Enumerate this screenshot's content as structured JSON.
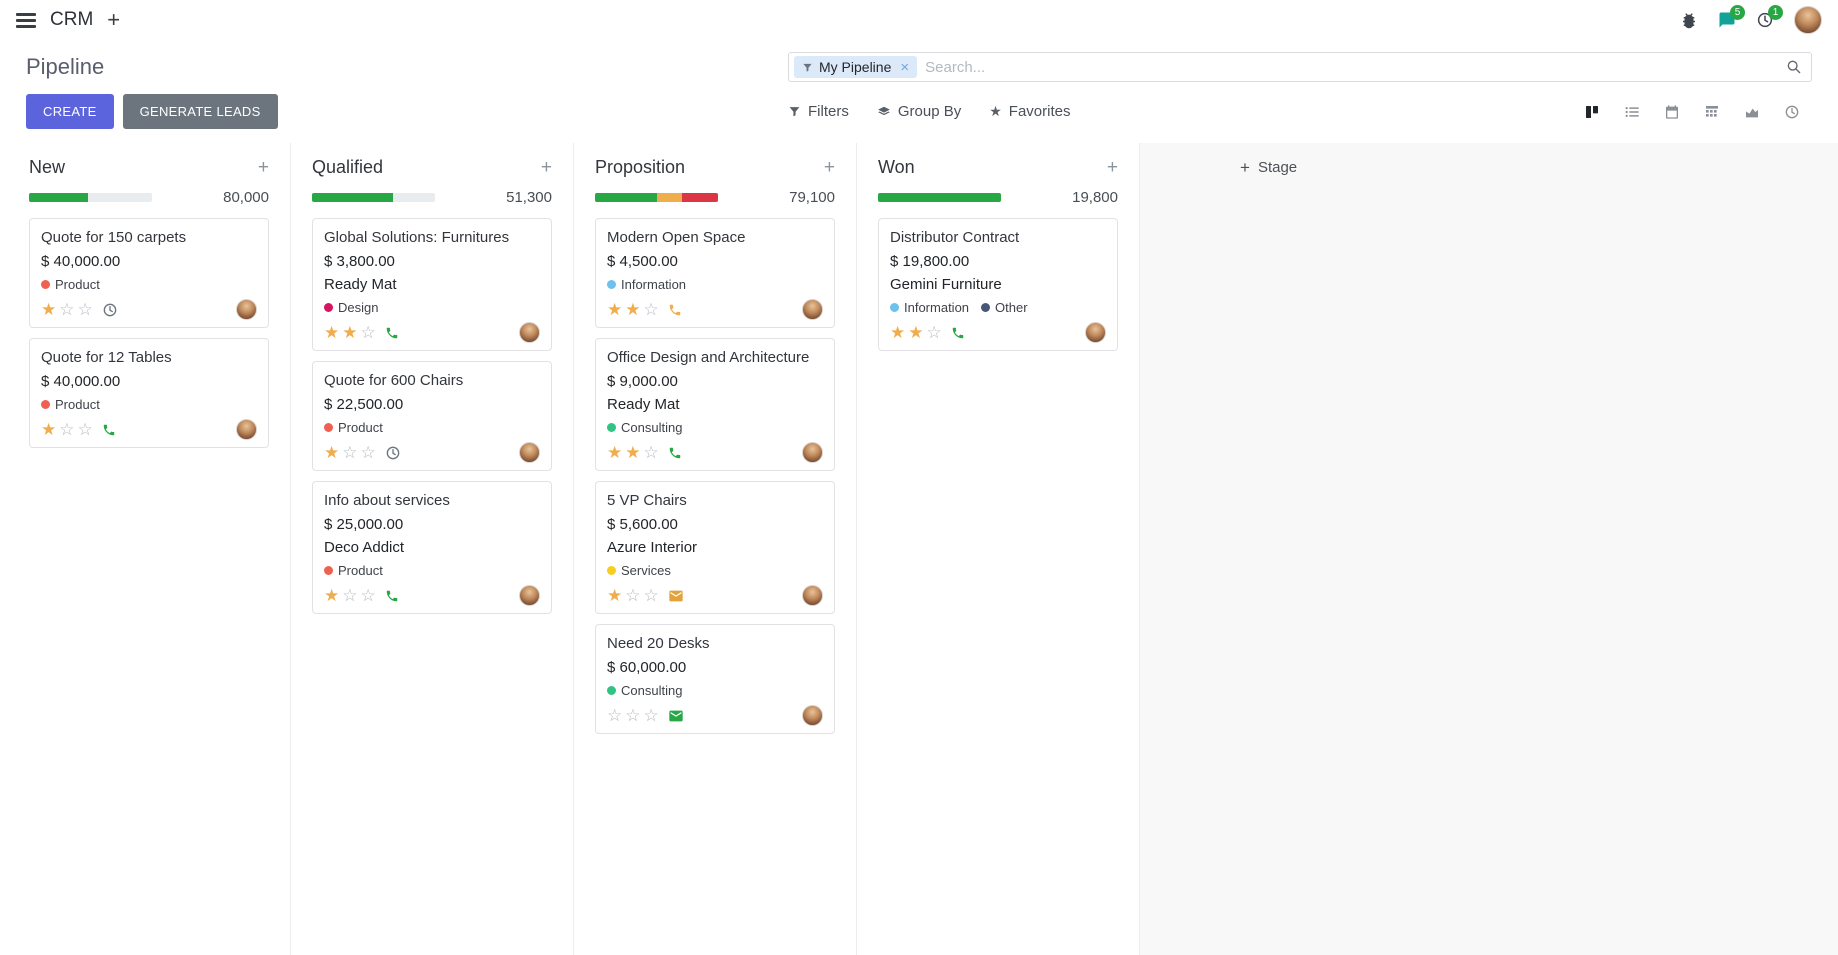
{
  "colors": {
    "primary": "#5c64dd",
    "secondary": "#6c757d",
    "success": "#28a745",
    "warning": "#f0ad4e",
    "danger": "#dc3545"
  },
  "topbar": {
    "app_name": "CRM",
    "messages_badge": "5",
    "activities_badge": "1"
  },
  "control_panel": {
    "title": "Pipeline",
    "create_label": "CREATE",
    "generate_leads_label": "GENERATE LEADS",
    "filters_label": "Filters",
    "group_by_label": "Group By",
    "favorites_label": "Favorites",
    "search": {
      "facet_label": "My Pipeline",
      "placeholder": "Search..."
    }
  },
  "board": {
    "add_stage_label": "Stage",
    "columns": [
      {
        "name": "New",
        "total": "80,000",
        "progress": [
          {
            "color": "#28a745",
            "width": "48%"
          }
        ],
        "cards": [
          {
            "title": "Quote for 150 carpets",
            "amount": "$ 40,000.00",
            "tags": [
              {
                "label": "Product",
                "color": "#f06050"
              }
            ],
            "priority": 1,
            "activity": {
              "icon": "clock-icon",
              "color": "#6c757d"
            }
          },
          {
            "title": "Quote for 12 Tables",
            "amount": "$ 40,000.00",
            "tags": [
              {
                "label": "Product",
                "color": "#f06050"
              }
            ],
            "priority": 1,
            "activity": {
              "icon": "phone-icon",
              "color": "#28a745"
            }
          }
        ]
      },
      {
        "name": "Qualified",
        "total": "51,300",
        "progress": [
          {
            "color": "#28a745",
            "width": "66%"
          }
        ],
        "cards": [
          {
            "title": "Global Solutions: Furnitures",
            "amount": "$ 3,800.00",
            "partner": "Ready Mat",
            "tags": [
              {
                "label": "Design",
                "color": "#d6145f"
              }
            ],
            "priority": 2,
            "activity": {
              "icon": "phone-icon",
              "color": "#28a745"
            }
          },
          {
            "title": "Quote for 600 Chairs",
            "amount": "$ 22,500.00",
            "tags": [
              {
                "label": "Product",
                "color": "#f06050"
              }
            ],
            "priority": 1,
            "activity": {
              "icon": "clock-icon",
              "color": "#6c757d"
            }
          },
          {
            "title": "Info about services",
            "amount": "$ 25,000.00",
            "partner": "Deco Addict",
            "tags": [
              {
                "label": "Product",
                "color": "#f06050"
              }
            ],
            "priority": 1,
            "activity": {
              "icon": "phone-icon",
              "color": "#28a745"
            }
          }
        ]
      },
      {
        "name": "Proposition",
        "total": "79,100",
        "progress": [
          {
            "color": "#28a745",
            "width": "50%"
          },
          {
            "color": "#f0ad4e",
            "width": "21%"
          },
          {
            "color": "#dc3545",
            "width": "29%"
          }
        ],
        "cards": [
          {
            "title": "Modern Open Space",
            "amount": "$ 4,500.00",
            "tags": [
              {
                "label": "Information",
                "color": "#6cc1ed"
              }
            ],
            "priority": 2,
            "activity": {
              "icon": "phone-icon",
              "color": "#f0ad4e"
            }
          },
          {
            "title": "Office Design and Architecture",
            "amount": "$ 9,000.00",
            "partner": "Ready Mat",
            "tags": [
              {
                "label": "Consulting",
                "color": "#30c381"
              }
            ],
            "priority": 2,
            "activity": {
              "icon": "phone-icon",
              "color": "#28a745"
            }
          },
          {
            "title": "5 VP Chairs",
            "amount": "$ 5,600.00",
            "partner": "Azure Interior",
            "tags": [
              {
                "label": "Services",
                "color": "#f7cd1f"
              }
            ],
            "priority": 1,
            "activity": {
              "icon": "envelope-icon",
              "color": "#e2a33d"
            }
          },
          {
            "title": "Need 20 Desks",
            "amount": "$ 60,000.00",
            "tags": [
              {
                "label": "Consulting",
                "color": "#30c381"
              }
            ],
            "priority": 0,
            "activity": {
              "icon": "envelope-icon",
              "color": "#28a745"
            }
          }
        ]
      },
      {
        "name": "Won",
        "total": "19,800",
        "progress": [
          {
            "color": "#28a745",
            "width": "100%"
          }
        ],
        "cards": [
          {
            "title": "Distributor Contract",
            "amount": "$ 19,800.00",
            "partner": "Gemini Furniture",
            "tags": [
              {
                "label": "Information",
                "color": "#6cc1ed"
              },
              {
                "label": "Other",
                "color": "#475577"
              }
            ],
            "priority": 2,
            "activity": {
              "icon": "phone-icon",
              "color": "#28a745"
            }
          }
        ]
      }
    ]
  }
}
